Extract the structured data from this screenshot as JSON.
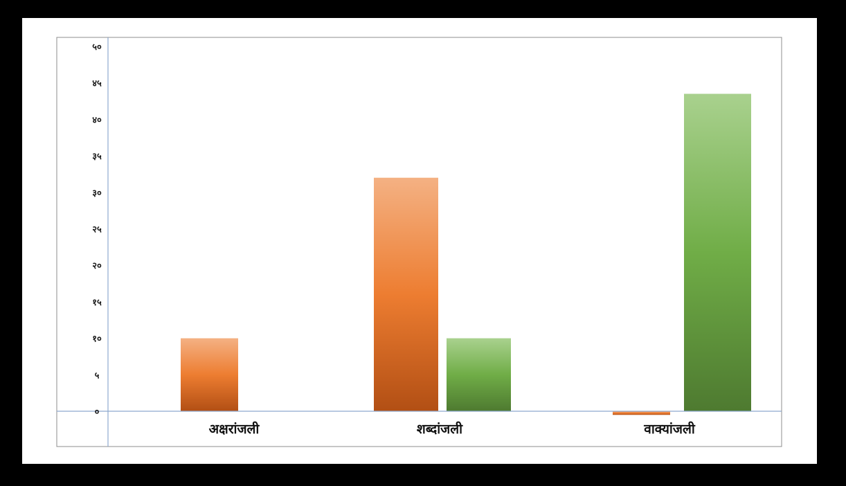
{
  "chart_data": {
    "type": "bar",
    "title": "",
    "xlabel": "",
    "ylabel": "",
    "categories": [
      "अक्षरांजली",
      "शब्दांजली",
      "वाक्यांजली"
    ],
    "series": [
      {
        "values": [
          10,
          32,
          -0.5
        ],
        "color_top": "#f4b183",
        "color_mid": "#ed7d31",
        "color_bottom": "#b24f14"
      },
      {
        "values": [
          0,
          10,
          43.5
        ],
        "color_top": "#a9d18e",
        "color_mid": "#70ad47",
        "color_bottom": "#4e7a30"
      }
    ],
    "ylim": [
      0,
      50
    ],
    "yticks": [
      0,
      5,
      10,
      15,
      20,
      25,
      30,
      35,
      40,
      45,
      50
    ],
    "ytick_labels": [
      "०",
      "५",
      "१०",
      "१५",
      "२०",
      "२५",
      "३०",
      "३५",
      "४०",
      "४५",
      "५०"
    ],
    "grid": false,
    "legend": "none",
    "axis_color": "#8ea9cf",
    "frame_color": "#8c8c8c"
  }
}
